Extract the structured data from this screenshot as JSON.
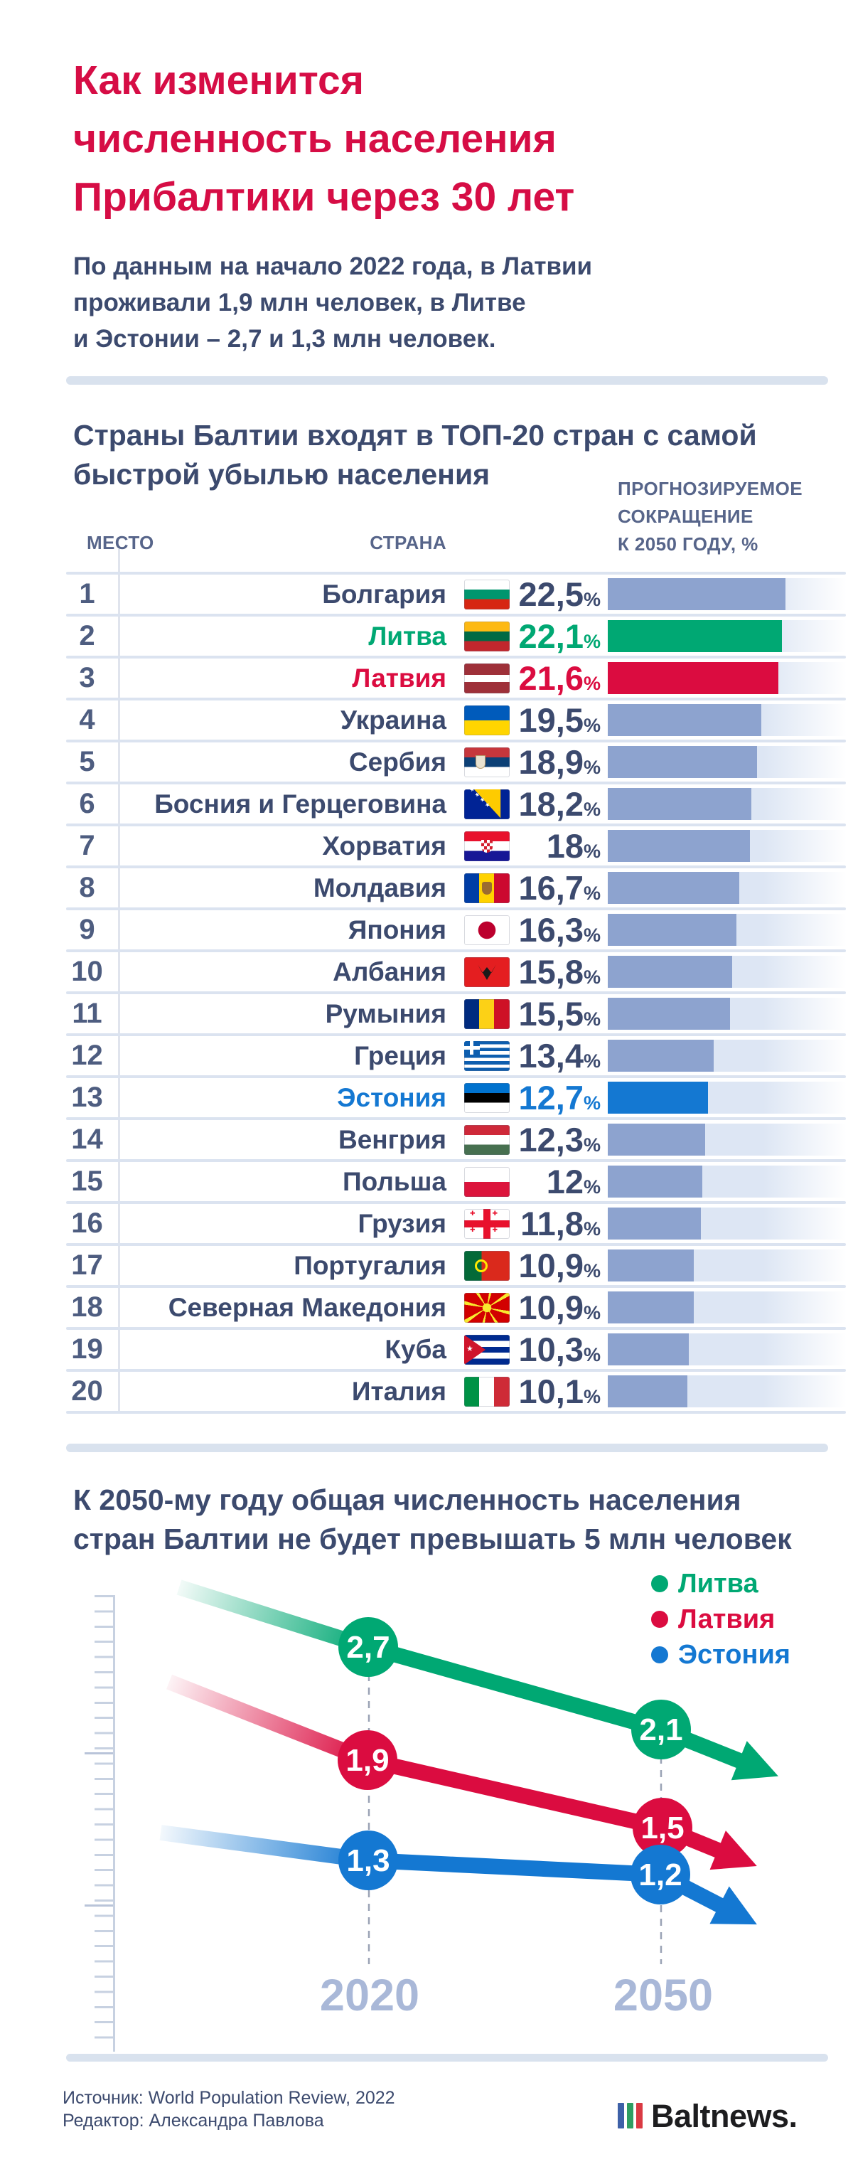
{
  "header": {
    "title": "Как изменится\nчисленность населения\nПрибалтики через 30 лет",
    "subtitle": "По данным на начало 2022 года, в Латвии\nпроживали 1,9 млн человек, в Литве\nи Эстонии – 2,7 и 1,3 млн человек."
  },
  "table_section": {
    "heading": "Страны Балтии входят в ТОП-20 стран с самой\nбыстрой убылью населения",
    "col_place": "МЕСТО",
    "col_country": "СТРАНА",
    "col_value": "ПРОГНОЗИРУЕМОЕ\nСОКРАЩЕНИЕ\nК 2050 ГОДУ, %",
    "percent_sign": "%",
    "accent_colors": {
      "green": "#00a873",
      "red": "#db0c40",
      "blue": "#1478d2"
    },
    "default_bar_color": "#8da3cf",
    "rows": [
      {
        "place": 1,
        "country": "Болгария",
        "flag": "bulgaria",
        "value": "22,5",
        "pct": 22.5,
        "accent": null
      },
      {
        "place": 2,
        "country": "Литва",
        "flag": "lithuania",
        "value": "22,1",
        "pct": 22.1,
        "accent": "green"
      },
      {
        "place": 3,
        "country": "Латвия",
        "flag": "latvia",
        "value": "21,6",
        "pct": 21.6,
        "accent": "red"
      },
      {
        "place": 4,
        "country": "Украина",
        "flag": "ukraine",
        "value": "19,5",
        "pct": 19.5,
        "accent": null
      },
      {
        "place": 5,
        "country": "Сербия",
        "flag": "serbia",
        "value": "18,9",
        "pct": 18.9,
        "accent": null
      },
      {
        "place": 6,
        "country": "Босния и Герцеговина",
        "flag": "bosnia",
        "value": "18,2",
        "pct": 18.2,
        "accent": null
      },
      {
        "place": 7,
        "country": "Хорватия",
        "flag": "croatia",
        "value": "18",
        "pct": 18.0,
        "accent": null
      },
      {
        "place": 8,
        "country": "Молдавия",
        "flag": "moldova",
        "value": "16,7",
        "pct": 16.7,
        "accent": null
      },
      {
        "place": 9,
        "country": "Япония",
        "flag": "japan",
        "value": "16,3",
        "pct": 16.3,
        "accent": null
      },
      {
        "place": 10,
        "country": "Албания",
        "flag": "albania",
        "value": "15,8",
        "pct": 15.8,
        "accent": null
      },
      {
        "place": 11,
        "country": "Румыния",
        "flag": "romania",
        "value": "15,5",
        "pct": 15.5,
        "accent": null
      },
      {
        "place": 12,
        "country": "Греция",
        "flag": "greece",
        "value": "13,4",
        "pct": 13.4,
        "accent": null
      },
      {
        "place": 13,
        "country": "Эстония",
        "flag": "estonia",
        "value": "12,7",
        "pct": 12.7,
        "accent": "blue"
      },
      {
        "place": 14,
        "country": "Венгрия",
        "flag": "hungary",
        "value": "12,3",
        "pct": 12.3,
        "accent": null
      },
      {
        "place": 15,
        "country": "Польша",
        "flag": "poland",
        "value": "12",
        "pct": 12.0,
        "accent": null
      },
      {
        "place": 16,
        "country": "Грузия",
        "flag": "georgia",
        "value": "11,8",
        "pct": 11.8,
        "accent": null
      },
      {
        "place": 17,
        "country": "Португалия",
        "flag": "portugal",
        "value": "10,9",
        "pct": 10.9,
        "accent": null
      },
      {
        "place": 18,
        "country": "Северная Македония",
        "flag": "macedonia",
        "value": "10,9",
        "pct": 10.9,
        "accent": null
      },
      {
        "place": 19,
        "country": "Куба",
        "flag": "cuba",
        "value": "10,3",
        "pct": 10.3,
        "accent": null
      },
      {
        "place": 20,
        "country": "Италия",
        "flag": "italy",
        "value": "10,1",
        "pct": 10.1,
        "accent": null
      }
    ]
  },
  "chart_section": {
    "heading": "К 2050-му году общая численность населения\nстран Балтии не будет превышать 5 млн человек",
    "legend": [
      {
        "label": "Литва",
        "color": "#00a873"
      },
      {
        "label": "Латвия",
        "color": "#db0c40"
      },
      {
        "label": "Эстония",
        "color": "#1478d2"
      }
    ],
    "series": [
      {
        "name": "Литва",
        "labels": [
          "2,7",
          "2,1"
        ]
      },
      {
        "name": "Латвия",
        "labels": [
          "1,9",
          "1,5"
        ]
      },
      {
        "name": "Эстония",
        "labels": [
          "1,3",
          "1,2"
        ]
      }
    ],
    "x_labels": [
      "2020",
      "2050"
    ]
  },
  "chart_data": [
    {
      "type": "bar",
      "title": "Страны Балтии входят в ТОП-20 стран с самой быстрой убылью населения",
      "categories": [
        "Болгария",
        "Литва",
        "Латвия",
        "Украина",
        "Сербия",
        "Босния и Герцеговина",
        "Хорватия",
        "Молдавия",
        "Япония",
        "Албания",
        "Румыния",
        "Греция",
        "Эстония",
        "Венгрия",
        "Польша",
        "Грузия",
        "Португалия",
        "Северная Македония",
        "Куба",
        "Италия"
      ],
      "values": [
        22.5,
        22.1,
        21.6,
        19.5,
        18.9,
        18.2,
        18,
        16.7,
        16.3,
        15.8,
        15.5,
        13.4,
        12.7,
        12.3,
        12,
        11.8,
        10.9,
        10.9,
        10.3,
        10.1
      ],
      "xlabel": "",
      "ylabel": "ПРОГНОЗИРУЕМОЕ СОКРАЩЕНИЕ К 2050 ГОДУ, %",
      "orientation": "horizontal",
      "highlighted_categories": {
        "Литва": "#00a873",
        "Латвия": "#db0c40",
        "Эстония": "#1478d2"
      }
    },
    {
      "type": "line",
      "title": "К 2050-му году общая численность населения стран Балтии не будет превышать 5 млн человек",
      "x": [
        2020,
        2050
      ],
      "series": [
        {
          "name": "Литва",
          "values": [
            2.7,
            2.1
          ],
          "color": "#00a873"
        },
        {
          "name": "Латвия",
          "values": [
            1.9,
            1.5
          ],
          "color": "#db0c40"
        },
        {
          "name": "Эстония",
          "values": [
            1.3,
            1.2
          ],
          "color": "#1478d2"
        }
      ],
      "ylim": [
        0,
        3
      ],
      "legend_position": "top-right",
      "unit": "млн человек"
    }
  ],
  "footer": {
    "source": "Источник: World Population Review, 2022",
    "editor": "Редактор: Александра Павлова",
    "logo_text": "Baltnews."
  }
}
